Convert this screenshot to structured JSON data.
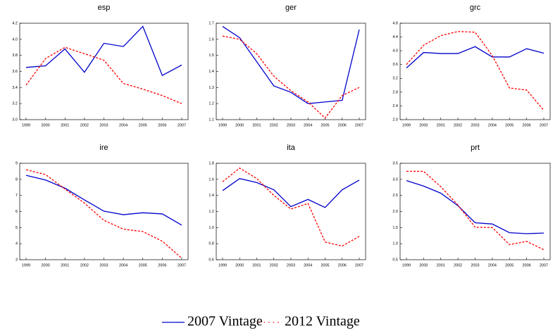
{
  "chart_data": [
    {
      "type": "line",
      "title": "esp",
      "categories": [
        "1999",
        "2000",
        "2001",
        "2002",
        "2003",
        "2004",
        "2005",
        "2006",
        "2007"
      ],
      "series": [
        {
          "name": "2007 Vintage",
          "color": "#0000cc",
          "values": [
            3.65,
            3.67,
            3.88,
            3.59,
            3.95,
            3.91,
            4.16,
            3.55,
            3.68
          ]
        },
        {
          "name": "2012 Vintage",
          "color": "#ff0000",
          "values": [
            3.43,
            3.76,
            3.9,
            3.82,
            3.74,
            3.45,
            3.38,
            3.3,
            3.2
          ]
        }
      ],
      "ylim": [
        3.0,
        4.2
      ],
      "yticks": [
        {
          "value": 3,
          "label": "3.0"
        },
        3.2,
        3.4,
        3.6,
        3.8,
        {
          "value": 4,
          "label": "4.0"
        },
        4.2
      ]
    },
    {
      "type": "line",
      "title": "ger",
      "categories": [
        "1999",
        "2000",
        "2001",
        "2002",
        "2003",
        "2004",
        "2005",
        "2006",
        "2007"
      ],
      "series": [
        {
          "name": "2007 Vintage",
          "color": "#0000cc",
          "values": [
            1.68,
            1.61,
            1.46,
            1.31,
            1.27,
            1.2,
            1.21,
            1.22,
            1.66
          ]
        },
        {
          "name": "2012 Vintage",
          "color": "#ff0000",
          "values": [
            1.62,
            1.6,
            1.51,
            1.37,
            1.28,
            1.21,
            1.11,
            1.25,
            1.3
          ]
        }
      ],
      "ylim": [
        1.1,
        1.7
      ],
      "yticks": [
        1.1,
        1.2,
        1.3,
        1.4,
        1.5,
        1.6,
        1.7
      ]
    },
    {
      "type": "line",
      "title": "grc",
      "categories": [
        "1999",
        "2000",
        "2001",
        "2002",
        "2003",
        "2004",
        "2005",
        "2006",
        "2007"
      ],
      "series": [
        {
          "name": "2007 Vintage",
          "color": "#0000cc",
          "values": [
            3.5,
            3.95,
            3.92,
            3.92,
            4.12,
            3.82,
            3.82,
            4.06,
            3.93
          ]
        },
        {
          "name": "2012 Vintage",
          "color": "#ff0000",
          "values": [
            3.6,
            4.16,
            4.44,
            4.56,
            4.54,
            3.86,
            2.92,
            2.86,
            2.27
          ]
        }
      ],
      "ylim": [
        2.0,
        4.8
      ],
      "yticks": [
        {
          "value": 2,
          "label": "2.0"
        },
        2.4,
        2.8,
        3.2,
        3.6,
        {
          "value": 4,
          "label": "4.0"
        },
        4.4,
        4.8
      ]
    },
    {
      "type": "line",
      "title": "ire",
      "categories": [
        "1999",
        "2000",
        "2001",
        "2002",
        "2003",
        "2004",
        "2005",
        "2006",
        "2007"
      ],
      "series": [
        {
          "name": "2007 Vintage",
          "color": "#0000cc",
          "values": [
            8.25,
            7.96,
            7.45,
            6.72,
            6.02,
            5.8,
            5.92,
            5.85,
            5.15
          ]
        },
        {
          "name": "2012 Vintage",
          "color": "#ff0000",
          "values": [
            8.6,
            8.3,
            7.4,
            6.52,
            5.45,
            4.9,
            4.75,
            4.15,
            3.1
          ]
        }
      ],
      "ylim": [
        3,
        9
      ],
      "yticks": [
        3,
        4,
        5,
        6,
        7,
        8,
        9
      ]
    },
    {
      "type": "line",
      "title": "ita",
      "categories": [
        "1999",
        "2000",
        "2001",
        "2002",
        "2003",
        "2004",
        "2005",
        "2006",
        "2007"
      ],
      "series": [
        {
          "name": "2007 Vintage",
          "color": "#0000cc",
          "values": [
            1.46,
            1.61,
            1.56,
            1.47,
            1.26,
            1.35,
            1.25,
            1.47,
            1.59
          ]
        },
        {
          "name": "2012 Vintage",
          "color": "#ff0000",
          "values": [
            1.57,
            1.74,
            1.61,
            1.4,
            1.23,
            1.3,
            0.82,
            0.77,
            0.89
          ]
        }
      ],
      "ylim": [
        0.6,
        1.8
      ],
      "yticks": [
        0.6,
        0.8,
        {
          "value": 1,
          "label": "1.0"
        },
        1.2,
        1.4,
        1.6,
        1.8
      ]
    },
    {
      "type": "line",
      "title": "prt",
      "categories": [
        "1999",
        "2000",
        "2001",
        "2002",
        "2003",
        "2004",
        "2005",
        "2006",
        "2007"
      ],
      "series": [
        {
          "name": "2007 Vintage",
          "color": "#0000cc",
          "values": [
            2.96,
            2.79,
            2.57,
            2.18,
            1.65,
            1.61,
            1.34,
            1.31,
            1.33
          ]
        },
        {
          "name": "2012 Vintage",
          "color": "#ff0000",
          "values": [
            3.25,
            3.25,
            2.77,
            2.2,
            1.51,
            1.5,
            0.97,
            1.07,
            0.81
          ]
        }
      ],
      "ylim": [
        0.5,
        3.5
      ],
      "yticks": [
        0.5,
        {
          "value": 1,
          "label": "1.0"
        },
        1.5,
        {
          "value": 2,
          "label": "2.0"
        },
        2.5,
        {
          "value": 3,
          "label": "3.0"
        },
        3.5
      ]
    }
  ]
}
